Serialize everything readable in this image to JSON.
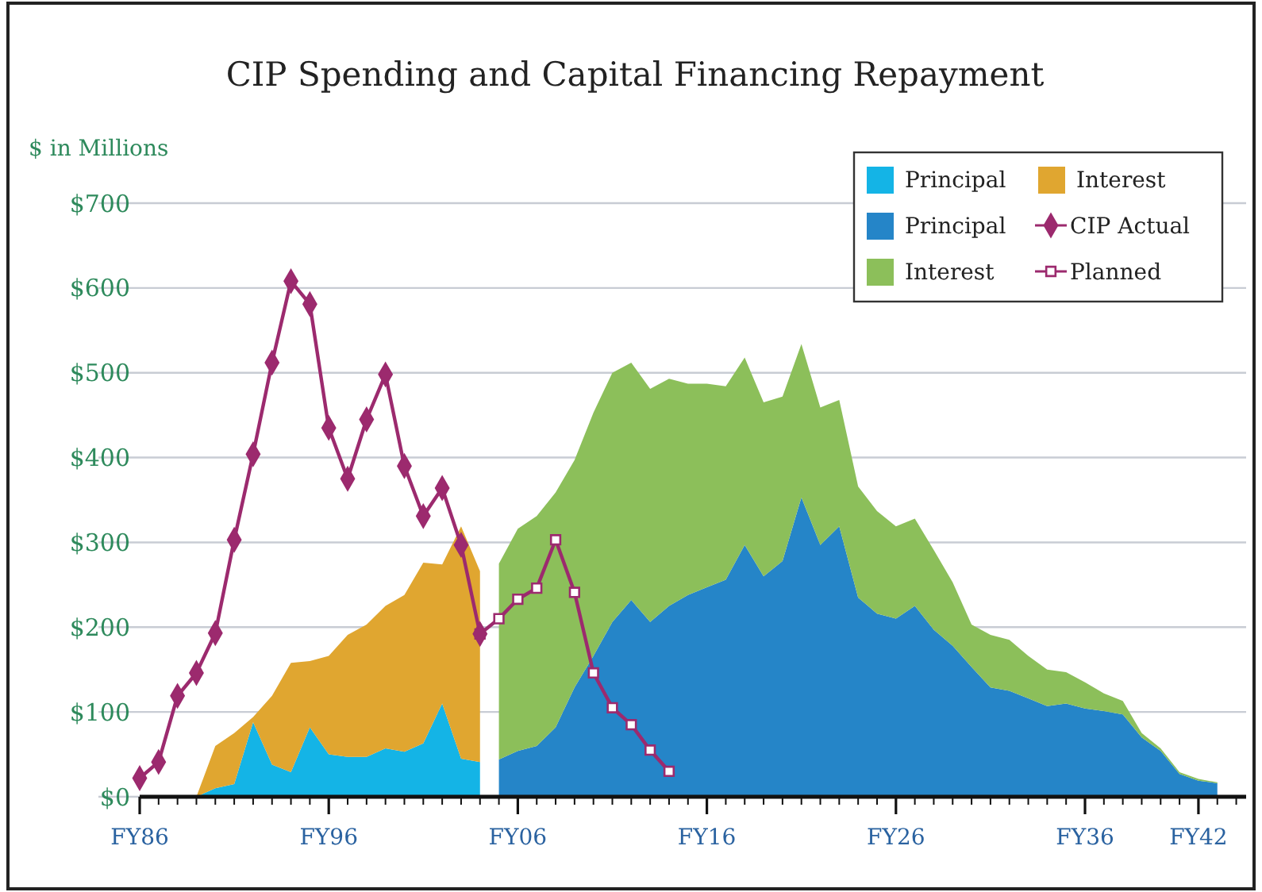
{
  "chart_data": {
    "type": "area",
    "title": "CIP Spending and Capital Financing Repayment",
    "ylabel": "$ in Millions",
    "categories": [
      "FY86",
      null,
      null,
      null,
      null,
      null,
      null,
      null,
      null,
      null,
      "FY96",
      null,
      null,
      null,
      null,
      null,
      null,
      null,
      null,
      null,
      "FY06",
      null,
      null,
      null,
      null,
      null,
      null,
      null,
      null,
      null,
      "FY16",
      null,
      null,
      null,
      null,
      null,
      null,
      null,
      null,
      null,
      "FY26",
      null,
      null,
      null,
      null,
      null,
      null,
      null,
      null,
      null,
      "FY36",
      null,
      null,
      null,
      null,
      null,
      "FY42",
      null,
      null
    ],
    "ylim": [
      0,
      700
    ],
    "yticks": [
      {
        "value": 0,
        "label": "$0"
      },
      {
        "value": 100,
        "label": "$100"
      },
      {
        "value": 200,
        "label": "$200"
      },
      {
        "value": 300,
        "label": "$300"
      },
      {
        "value": 400,
        "label": "$400"
      },
      {
        "value": 500,
        "label": "$500"
      },
      {
        "value": 600,
        "label": "$600"
      },
      {
        "value": 700,
        "label": "$700"
      }
    ],
    "grid": "y",
    "legend": "top right",
    "stacked": true,
    "series": [
      {
        "name": "Principal",
        "color": "#14b4e6",
        "values": [
          null,
          null,
          null,
          0,
          10,
          15,
          88,
          38,
          29,
          82,
          50,
          47,
          47,
          57,
          53,
          63,
          110,
          45,
          41,
          null,
          null,
          null,
          null,
          null,
          null,
          null,
          null,
          null,
          null,
          null,
          null,
          null,
          null,
          null,
          null,
          null,
          null,
          null,
          null,
          null,
          null,
          null,
          null,
          null,
          null,
          null,
          null,
          null,
          null,
          null,
          null,
          null,
          null,
          null,
          null,
          null,
          null,
          null,
          null
        ]
      },
      {
        "name": "Principal",
        "color": "#2585c8",
        "values": [
          null,
          null,
          null,
          null,
          null,
          null,
          null,
          null,
          null,
          null,
          null,
          null,
          null,
          null,
          null,
          null,
          null,
          null,
          null,
          44,
          54,
          60,
          82,
          129,
          166,
          206,
          232,
          206,
          225,
          238,
          247,
          256,
          297,
          260,
          278,
          353,
          297,
          319,
          235,
          216,
          210,
          225,
          197,
          178,
          153,
          129,
          125,
          116,
          107,
          110,
          104,
          101,
          97,
          70,
          54,
          27,
          19,
          16,
          null
        ]
      },
      {
        "name": "Interest",
        "color": "#8cbf5a",
        "values": [
          null,
          null,
          null,
          null,
          null,
          null,
          null,
          null,
          null,
          null,
          null,
          null,
          null,
          null,
          null,
          null,
          null,
          null,
          null,
          231,
          262,
          271,
          277,
          268,
          287,
          294,
          280,
          275,
          268,
          249,
          240,
          228,
          221,
          205,
          194,
          181,
          162,
          149,
          131,
          121,
          109,
          103,
          94,
          75,
          50,
          62,
          60,
          50,
          43,
          37,
          31,
          21,
          16,
          5,
          3,
          2,
          2,
          1,
          null
        ]
      },
      {
        "name": "Interest",
        "color": "#e0a630",
        "values": [
          null,
          null,
          null,
          0,
          50,
          60,
          6,
          81,
          129,
          78,
          116,
          144,
          156,
          168,
          185,
          213,
          164,
          274,
          225,
          null,
          null,
          null,
          null,
          null,
          null,
          null,
          null,
          null,
          null,
          null,
          null,
          null,
          null,
          null,
          null,
          null,
          null,
          null,
          null,
          null,
          null,
          null,
          null,
          null,
          null,
          null,
          null,
          null,
          null,
          null,
          null,
          null,
          null,
          null,
          null,
          null,
          null,
          null,
          null
        ]
      },
      {
        "name": "CIP Actual",
        "type": "line",
        "marker": "diamond",
        "color": "#9c2a6e",
        "values": [
          22,
          41,
          119,
          146,
          193,
          303,
          404,
          512,
          608,
          581,
          435,
          375,
          445,
          498,
          390,
          331,
          364,
          297,
          192,
          null,
          null,
          null,
          null,
          null,
          null,
          null,
          null,
          null,
          null,
          null,
          null,
          null,
          null,
          null,
          null,
          null,
          null,
          null,
          null,
          null,
          null,
          null,
          null,
          null,
          null,
          null,
          null,
          null,
          null,
          null,
          null,
          null,
          null,
          null,
          null,
          null,
          null,
          null,
          null
        ]
      },
      {
        "name": "Planned",
        "type": "line",
        "marker": "square",
        "color": "#9c2a6e",
        "values": [
          null,
          null,
          null,
          null,
          null,
          null,
          null,
          null,
          null,
          null,
          null,
          null,
          null,
          null,
          null,
          null,
          null,
          null,
          192,
          210,
          233,
          246,
          303,
          241,
          146,
          105,
          85,
          55,
          30,
          null,
          null,
          null,
          null,
          null,
          null,
          null,
          null,
          null,
          null,
          null,
          null,
          null,
          null,
          null,
          null,
          null,
          null,
          null,
          null,
          null,
          null,
          null,
          null,
          null,
          null,
          null,
          null,
          null,
          null
        ]
      }
    ]
  }
}
